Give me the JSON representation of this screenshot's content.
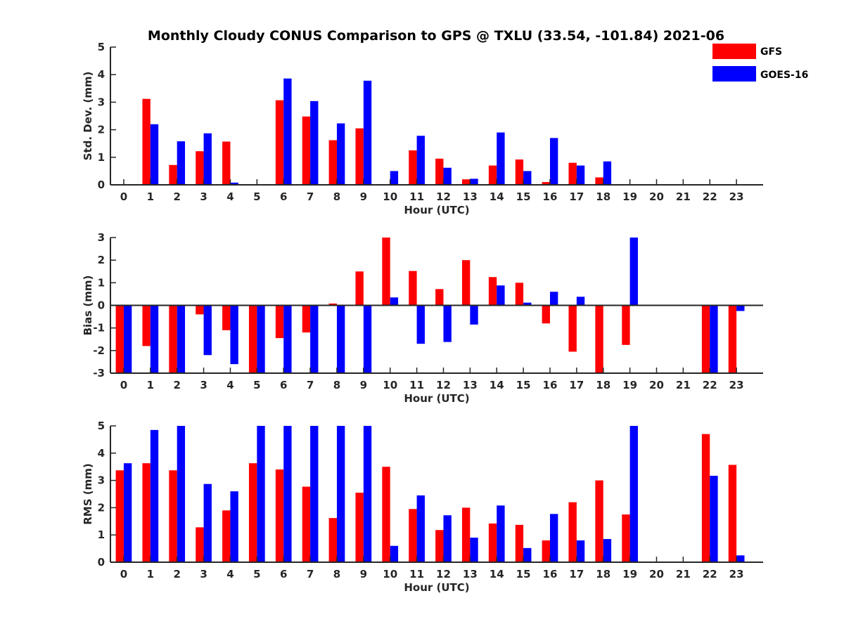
{
  "title": "Monthly Cloudy CONUS Comparison to GPS @ TXLU (33.54, -101.84) 2021-06",
  "legend": {
    "placement": "top-right",
    "entries": [
      {
        "name": "GFS",
        "color": "#ff0000"
      },
      {
        "name": "GOES-16",
        "color": "#0000ff"
      }
    ]
  },
  "chart_data": [
    {
      "type": "bar",
      "ylabel": "Std. Dev. (mm)",
      "xlabel": "Hour (UTC)",
      "ylim": [
        0,
        5
      ],
      "yticks": [
        0,
        1,
        2,
        3,
        4,
        5
      ],
      "categories": [
        "0",
        "1",
        "2",
        "3",
        "4",
        "5",
        "6",
        "7",
        "8",
        "9",
        "10",
        "11",
        "12",
        "13",
        "14",
        "15",
        "16",
        "17",
        "18",
        "19",
        "20",
        "21",
        "22",
        "23"
      ],
      "series": [
        {
          "name": "GFS",
          "color": "#ff0000",
          "values": [
            0,
            3.12,
            0.72,
            1.22,
            1.57,
            0,
            3.07,
            2.48,
            1.62,
            2.05,
            0.02,
            1.25,
            0.95,
            0.2,
            0.7,
            0.92,
            0.1,
            0.8,
            0.27,
            0,
            0,
            0,
            0,
            0
          ]
        },
        {
          "name": "GOES-16",
          "color": "#0000ff",
          "values": [
            0,
            2.2,
            1.58,
            1.87,
            0.08,
            0,
            3.86,
            3.04,
            2.23,
            3.78,
            0.5,
            1.78,
            0.62,
            0.22,
            1.9,
            0.5,
            1.7,
            0.7,
            0.85,
            0,
            0,
            0,
            0,
            0
          ]
        }
      ]
    },
    {
      "type": "bar",
      "ylabel": "Bias (mm)",
      "xlabel": "Hour (UTC)",
      "ylim": [
        -3,
        3
      ],
      "yticks": [
        -3,
        -2,
        -1,
        0,
        1,
        2,
        3
      ],
      "categories": [
        "0",
        "1",
        "2",
        "3",
        "4",
        "5",
        "6",
        "7",
        "8",
        "9",
        "10",
        "11",
        "12",
        "13",
        "14",
        "15",
        "16",
        "17",
        "18",
        "19",
        "20",
        "21",
        "22",
        "23"
      ],
      "series": [
        {
          "name": "GFS",
          "color": "#ff0000",
          "values": [
            -3,
            -1.8,
            -3,
            -0.4,
            -1.1,
            -3,
            -1.45,
            -1.2,
            0.08,
            1.5,
            3,
            1.52,
            0.72,
            2,
            1.25,
            1,
            -0.8,
            -2.05,
            -3,
            -1.75,
            0,
            0,
            -3,
            -3
          ]
        },
        {
          "name": "GOES-16",
          "color": "#0000ff",
          "values": [
            -3,
            -3,
            -3,
            -2.2,
            -2.6,
            -3,
            -3,
            -3,
            -3,
            -3,
            0.35,
            -1.7,
            -1.62,
            -0.85,
            0.88,
            0.12,
            0.6,
            0.38,
            0,
            3,
            0,
            0,
            -3,
            -0.25
          ]
        }
      ]
    },
    {
      "type": "bar",
      "ylabel": "RMS (mm)",
      "xlabel": "Hour (UTC)",
      "ylim": [
        0,
        5
      ],
      "yticks": [
        0,
        1,
        2,
        3,
        4,
        5
      ],
      "categories": [
        "0",
        "1",
        "2",
        "3",
        "4",
        "5",
        "6",
        "7",
        "8",
        "9",
        "10",
        "11",
        "12",
        "13",
        "14",
        "15",
        "16",
        "17",
        "18",
        "19",
        "20",
        "21",
        "22",
        "23"
      ],
      "series": [
        {
          "name": "GFS",
          "color": "#ff0000",
          "values": [
            3.37,
            3.63,
            3.37,
            1.28,
            1.9,
            3.63,
            3.4,
            2.77,
            1.62,
            2.55,
            3.5,
            1.95,
            1.18,
            2,
            1.42,
            1.37,
            0.8,
            2.2,
            3,
            1.75,
            0,
            0,
            4.7,
            3.57
          ]
        },
        {
          "name": "GOES-16",
          "color": "#0000ff",
          "values": [
            3.63,
            4.85,
            5,
            2.87,
            2.6,
            5,
            5,
            5,
            5,
            5,
            0.6,
            2.45,
            1.72,
            0.9,
            2.08,
            0.52,
            1.77,
            0.8,
            0.85,
            5,
            0,
            0,
            3.17,
            0.25
          ]
        }
      ]
    }
  ]
}
